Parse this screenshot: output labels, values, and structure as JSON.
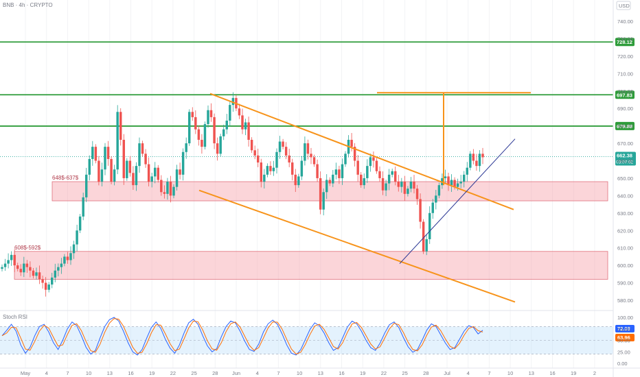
{
  "header": {
    "symbol_label": "BNB · 4h · CRYPTO",
    "currency": "USD"
  },
  "chart_data": {
    "type": "candlestick",
    "price_axis": {
      "ticks": [
        740,
        730,
        720,
        710,
        700,
        690,
        680,
        670,
        660,
        650,
        640,
        630,
        620,
        610,
        600,
        590,
        580
      ],
      "labels": [
        "740.00",
        "730.00",
        "720.00",
        "710.00",
        "700.00",
        "690.00",
        "680.00",
        "670.00",
        "660.00",
        "650.00",
        "640.00",
        "630.00",
        "620.00",
        "610.00",
        "600.00",
        "590.00",
        "580.00"
      ]
    },
    "time_axis": [
      "May",
      "4",
      "7",
      "10",
      "13",
      "16",
      "19",
      "22",
      "25",
      "28",
      "Jun",
      "4",
      "7",
      "10",
      "13",
      "16",
      "19",
      "22",
      "25",
      "28",
      "Jul",
      "4",
      "7",
      "10",
      "13",
      "16",
      "19",
      "2"
    ],
    "levels": [
      {
        "price": 728.12,
        "label": "728.12",
        "color": "#2e9c3a"
      },
      {
        "price": 697.83,
        "label": "697.83",
        "color": "#2e9c3a"
      },
      {
        "price": 679.88,
        "label": "679.88",
        "color": "#2e9c3a"
      }
    ],
    "last_price": {
      "price": 662.38,
      "label": "662.38",
      "countdown": "03:07:02",
      "color": "#26a69a"
    },
    "zones": [
      {
        "label": "648$-637$",
        "top": 648,
        "bottom": 637
      },
      {
        "label": "608$-592$",
        "top": 608,
        "bottom": 592
      }
    ],
    "trendlines": {
      "channel_upper": [
        [
          698.5,
          632
        ]
      ],
      "channel_lower": [
        [
          643,
          579
        ]
      ],
      "target_price": 699,
      "breakout_price": 646
    },
    "candles_close": [
      599,
      601,
      603,
      606,
      600,
      598,
      596,
      601,
      599,
      597,
      594,
      596,
      592,
      590,
      586,
      589,
      593,
      597,
      599,
      601,
      605,
      603,
      607,
      612,
      620,
      628,
      639,
      652,
      661,
      668,
      660,
      648,
      655,
      668,
      661,
      648,
      655,
      688,
      672,
      650,
      660,
      653,
      646,
      657,
      670,
      664,
      658,
      648,
      651,
      656,
      649,
      642,
      641,
      648,
      640,
      645,
      655,
      652,
      665,
      670,
      688,
      685,
      678,
      672,
      668,
      681,
      689,
      685,
      670,
      664,
      674,
      678,
      683,
      692,
      696,
      690,
      686,
      678,
      682,
      672,
      666,
      663,
      659,
      648,
      652,
      657,
      654,
      656,
      665,
      671,
      668,
      663,
      659,
      652,
      646,
      651,
      660,
      670,
      664,
      662,
      658,
      650,
      632,
      642,
      649,
      647,
      652,
      655,
      650,
      658,
      664,
      672,
      668,
      660,
      652,
      646,
      650,
      657,
      662,
      660,
      654,
      650,
      643,
      647,
      652,
      654,
      648,
      645,
      648,
      641,
      644,
      648,
      644,
      638,
      625,
      608,
      615,
      630,
      636,
      640,
      646,
      650,
      651,
      646,
      649,
      645,
      647,
      648,
      652,
      656,
      664,
      660,
      657,
      664,
      662
    ],
    "stoch_rsi": {
      "label": "Stoch RSI",
      "ticks": [
        100,
        75,
        50,
        25,
        0
      ],
      "tick_labels": [
        "100.00",
        "75.00",
        "50.00",
        "25.00",
        "0.00"
      ],
      "values": [
        "72.03",
        "63.96"
      ],
      "k": [
        60,
        72,
        85,
        70,
        40,
        22,
        35,
        60,
        80,
        85,
        68,
        45,
        30,
        50,
        75,
        90,
        82,
        60,
        35,
        20,
        28,
        55,
        80,
        95,
        100,
        92,
        70,
        45,
        25,
        18,
        30,
        55,
        78,
        90,
        76,
        52,
        33,
        22,
        40,
        66,
        88,
        96,
        85,
        60,
        38,
        25,
        32,
        58,
        80,
        92,
        88,
        70,
        48,
        30,
        26,
        42,
        68,
        86,
        94,
        85,
        64,
        40,
        22,
        18,
        30,
        52,
        74,
        88,
        82,
        66,
        45,
        28,
        34,
        56,
        79,
        92,
        86,
        70,
        50,
        34,
        28,
        44,
        66,
        84,
        90,
        78,
        56,
        36,
        24,
        30,
        50,
        72,
        86,
        80,
        62,
        44,
        30,
        34,
        52,
        70,
        82,
        78,
        64,
        72
      ]
    }
  }
}
